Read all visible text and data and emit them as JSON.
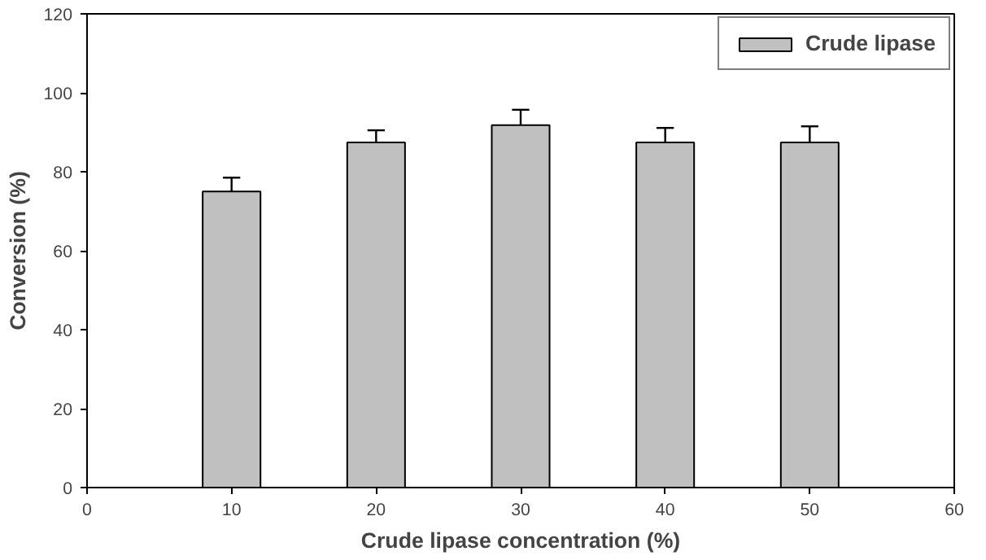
{
  "chart_data": {
    "type": "bar",
    "xlabel": "Crude lipase concentration (%)",
    "ylabel": "Conversion (%)",
    "x": [
      10,
      20,
      30,
      40,
      50
    ],
    "series": [
      {
        "name": "Crude lipase",
        "color": "#c0c0c0",
        "values": [
          75,
          87.4,
          91.8,
          87.4,
          87.4
        ],
        "errors": [
          [
            75,
            78.5
          ],
          [
            87.4,
            90.5
          ],
          [
            91.8,
            95.7
          ],
          [
            87.4,
            91.1
          ],
          [
            87.4,
            91.5
          ]
        ]
      }
    ],
    "xlim": [
      0,
      60
    ],
    "xticks": [
      0,
      10,
      20,
      30,
      40,
      50,
      60
    ],
    "ylim": [
      0,
      120
    ],
    "yticks": [
      0,
      20,
      40,
      60,
      80,
      100,
      120
    ],
    "grid": false,
    "legend": "top right"
  }
}
